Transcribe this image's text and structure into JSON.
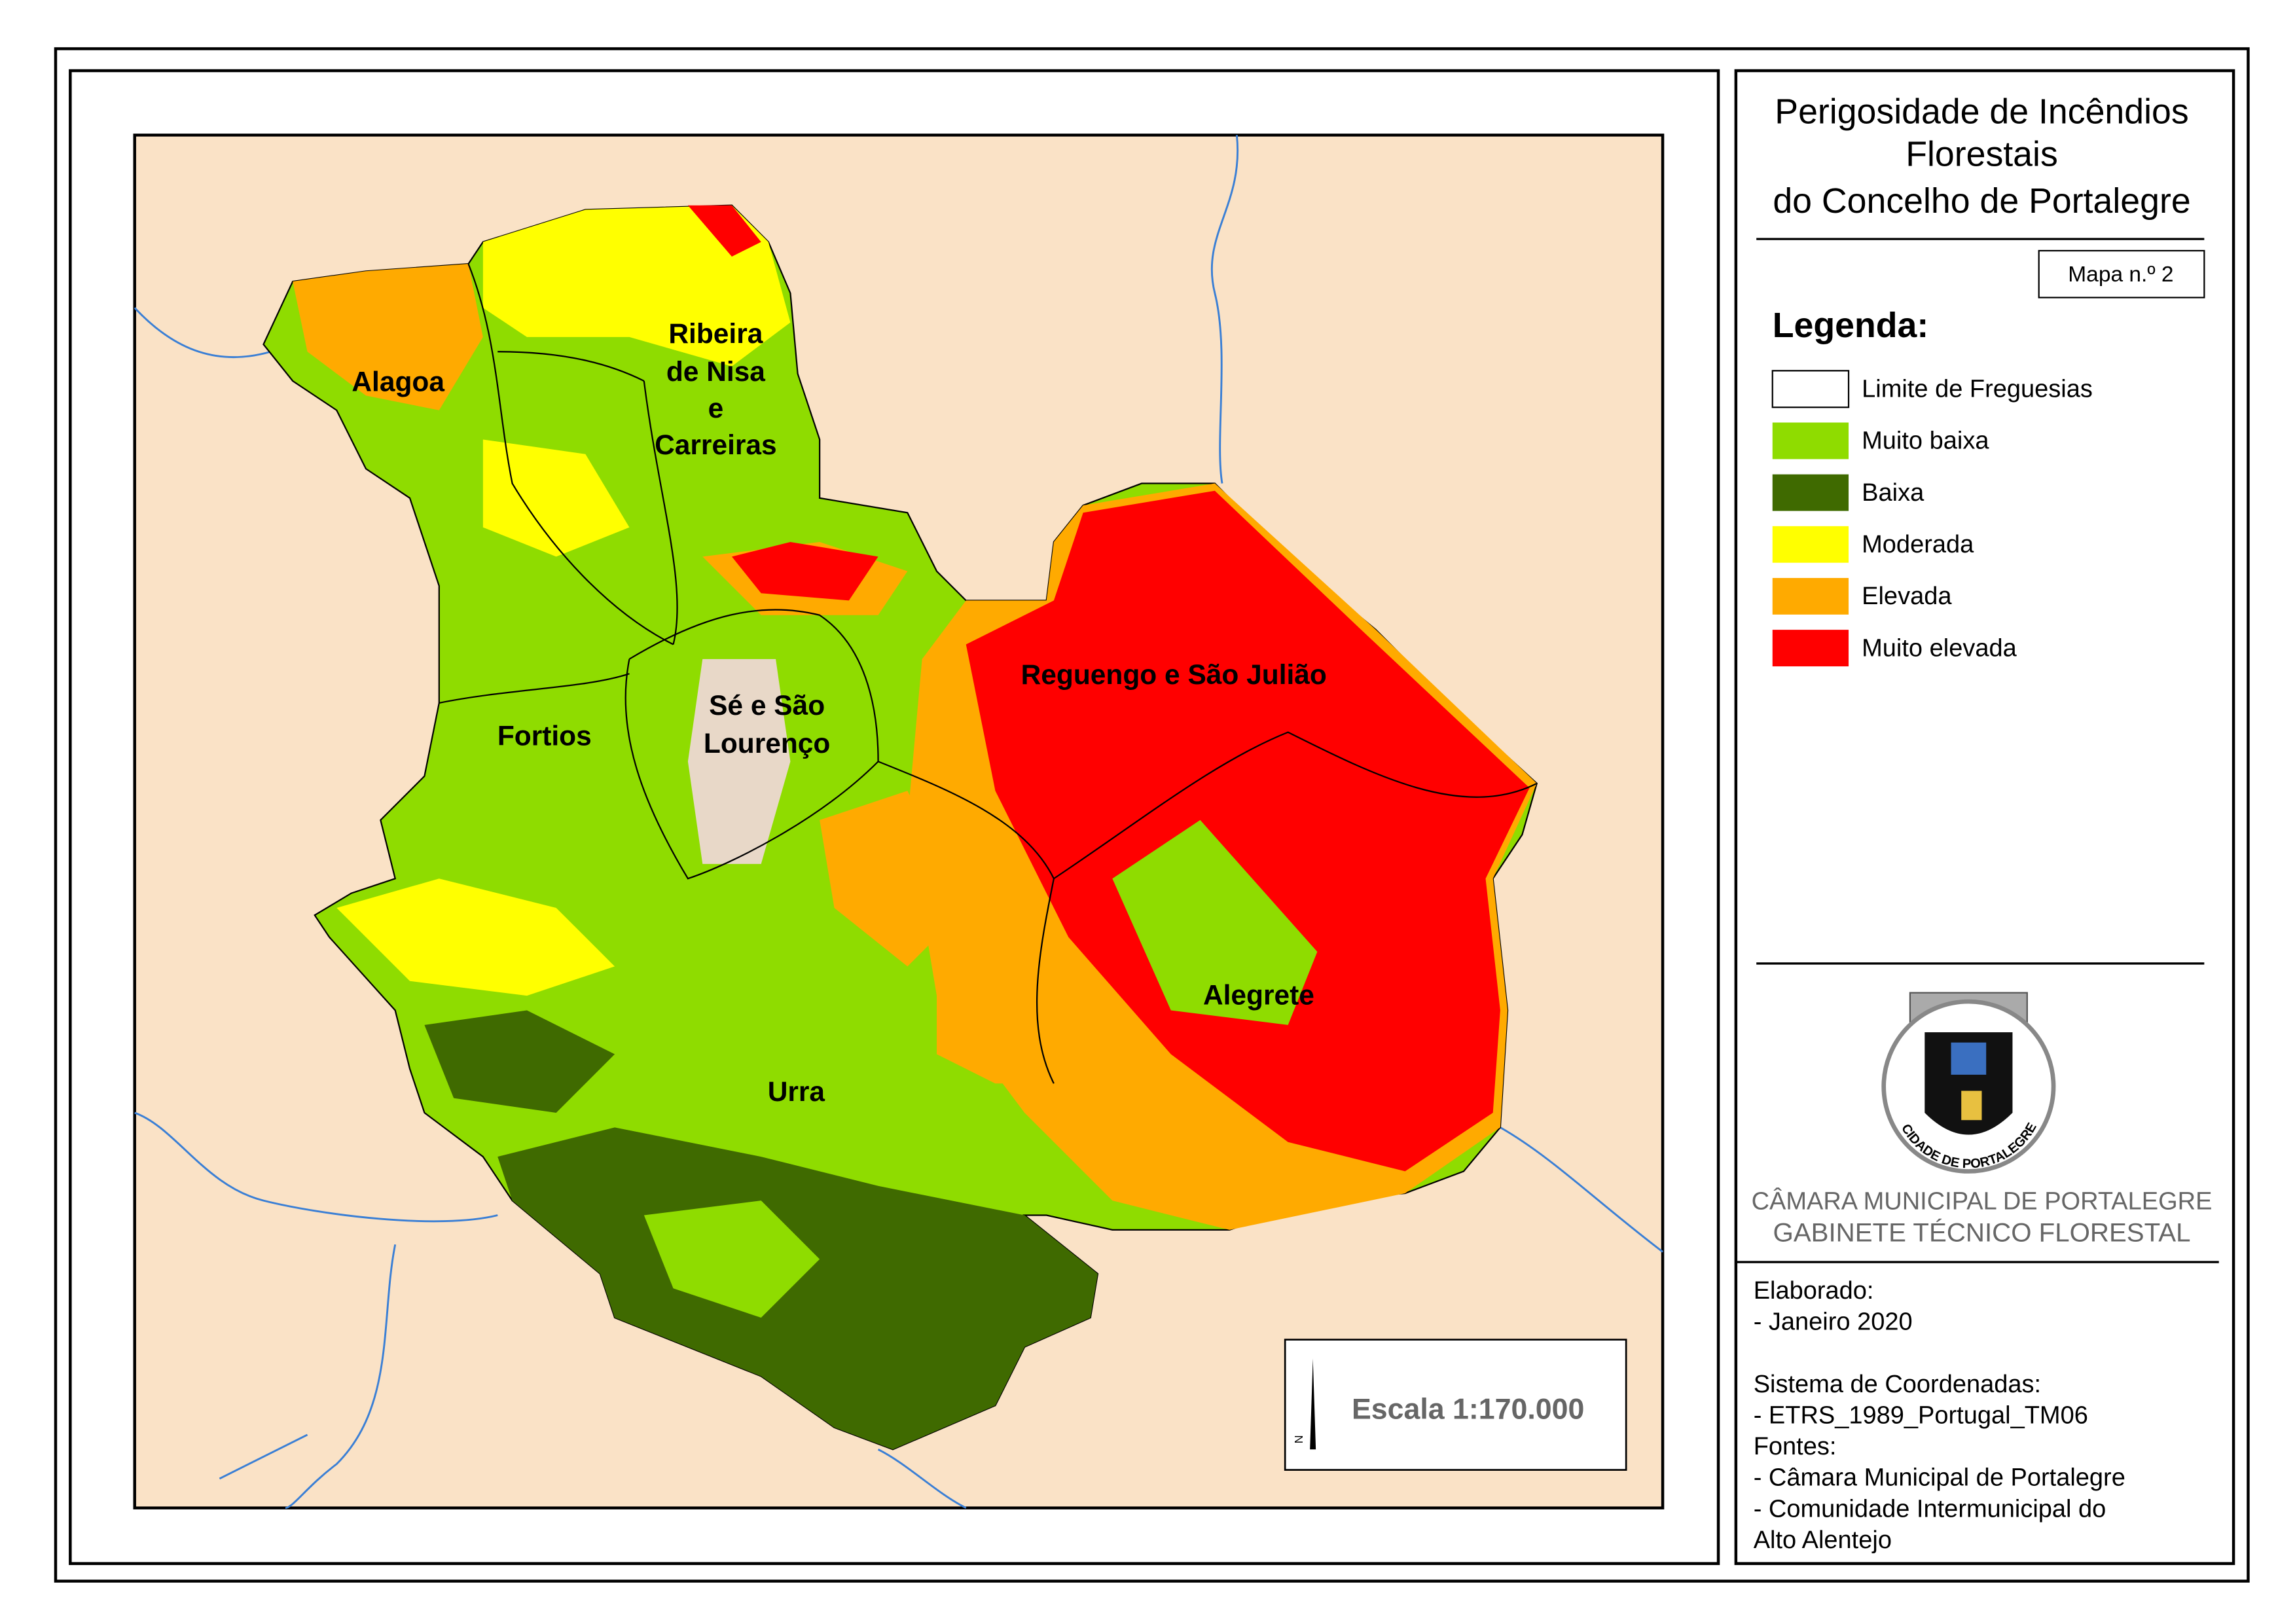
{
  "header": {
    "title_lines": [
      "Perigosidade de Incêndios",
      "Florestais",
      "do Concelho de Portalegre"
    ],
    "map_number": "Mapa n.º 2"
  },
  "legend": {
    "title": "Legenda:",
    "items": [
      {
        "label": "Limite de Freguesias",
        "color": "#ffffff"
      },
      {
        "label": "Muito baixa",
        "color": "#8fdc00"
      },
      {
        "label": "Baixa",
        "color": "#3f6a00"
      },
      {
        "label": "Moderada",
        "color": "#ffff00"
      },
      {
        "label": "Elevada",
        "color": "#ffaa00"
      },
      {
        "label": "Muito elevada",
        "color": "#ff0000"
      }
    ]
  },
  "parishes": [
    {
      "lines": [
        "Alagoa"
      ]
    },
    {
      "lines": [
        "Ribeira",
        "de Nisa",
        "e",
        "Carreiras"
      ]
    },
    {
      "lines": [
        "Fortios"
      ]
    },
    {
      "lines": [
        "Sé e São",
        "Lourenço"
      ]
    },
    {
      "lines": [
        "Reguengo e São Julião"
      ]
    },
    {
      "lines": [
        "Alegrete"
      ]
    },
    {
      "lines": [
        "Urra"
      ]
    }
  ],
  "scale": {
    "text": "Escala 1:170.000",
    "north": "N"
  },
  "logo": {
    "motto": "CIDADE DE PORTALEGRE"
  },
  "organization": {
    "name": "CÂMARA MUNICIPAL DE PORTALEGRE",
    "unit": "GABINETE TÉCNICO FLORESTAL"
  },
  "info": {
    "lines": [
      "Elaborado:",
      "- Janeiro 2020",
      "",
      "Sistema de Coordenadas:",
      "- ETRS_1989_Portugal_TM06",
      "Fontes:",
      "- Câmara Municipal de Portalegre",
      "- Comunidade Intermunicipal do",
      "Alto Alentejo"
    ]
  }
}
